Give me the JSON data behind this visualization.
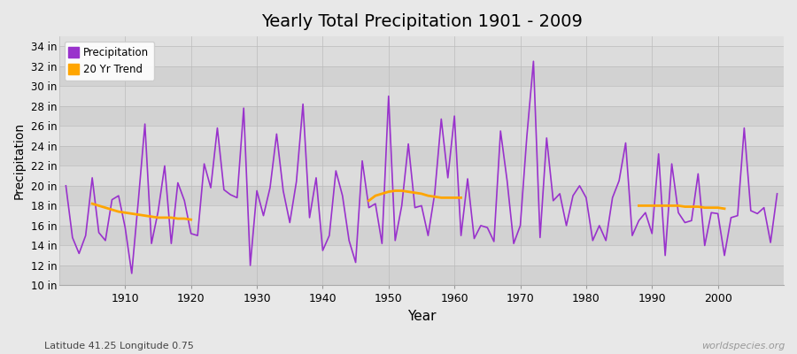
{
  "title": "Yearly Total Precipitation 1901 - 2009",
  "xlabel": "Year",
  "ylabel": "Precipitation",
  "subtitle": "Latitude 41.25 Longitude 0.75",
  "watermark": "worldspecies.org",
  "ylim": [
    10,
    35
  ],
  "yticks": [
    10,
    12,
    14,
    16,
    18,
    20,
    22,
    24,
    26,
    28,
    30,
    32,
    34
  ],
  "ytick_labels": [
    "10 in",
    "12 in",
    "14 in",
    "16 in",
    "18 in",
    "20 in",
    "22 in",
    "24 in",
    "26 in",
    "28 in",
    "30 in",
    "32 in",
    "34 in"
  ],
  "xlim": [
    1900,
    2010
  ],
  "precip_color": "#9932CC",
  "trend_color": "#FFA500",
  "bg_color": "#E8E8E8",
  "plot_bg_light": "#E0E0E0",
  "plot_bg_dark": "#D0D0D0",
  "years": [
    1901,
    1902,
    1903,
    1904,
    1905,
    1906,
    1907,
    1908,
    1909,
    1910,
    1911,
    1912,
    1913,
    1914,
    1915,
    1916,
    1917,
    1918,
    1919,
    1920,
    1921,
    1922,
    1923,
    1924,
    1925,
    1926,
    1927,
    1928,
    1929,
    1930,
    1931,
    1932,
    1933,
    1934,
    1935,
    1936,
    1937,
    1938,
    1939,
    1940,
    1941,
    1942,
    1943,
    1944,
    1945,
    1946,
    1947,
    1948,
    1949,
    1950,
    1951,
    1952,
    1953,
    1954,
    1955,
    1956,
    1957,
    1958,
    1959,
    1960,
    1961,
    1962,
    1963,
    1964,
    1965,
    1966,
    1967,
    1968,
    1969,
    1970,
    1971,
    1972,
    1973,
    1974,
    1975,
    1976,
    1977,
    1978,
    1979,
    1980,
    1981,
    1982,
    1983,
    1984,
    1985,
    1986,
    1987,
    1988,
    1989,
    1990,
    1991,
    1992,
    1993,
    1994,
    1995,
    1996,
    1997,
    1998,
    1999,
    2000,
    2001,
    2002,
    2003,
    2004,
    2005,
    2006,
    2007,
    2008,
    2009
  ],
  "precip": [
    20.0,
    14.8,
    13.2,
    15.0,
    20.8,
    15.3,
    14.5,
    18.6,
    19.0,
    15.8,
    11.2,
    18.5,
    26.2,
    14.2,
    17.4,
    22.0,
    14.2,
    20.3,
    18.5,
    15.2,
    15.0,
    22.2,
    19.8,
    25.8,
    19.6,
    19.1,
    18.8,
    27.8,
    12.0,
    19.5,
    17.0,
    19.8,
    25.2,
    19.5,
    16.3,
    20.4,
    28.2,
    16.8,
    20.8,
    13.5,
    15.0,
    21.5,
    19.0,
    14.5,
    12.3,
    22.5,
    17.8,
    18.2,
    14.2,
    29.0,
    14.5,
    18.0,
    24.2,
    17.8,
    18.0,
    15.0,
    19.2,
    26.7,
    20.8,
    27.0,
    15.0,
    20.7,
    14.7,
    16.0,
    15.8,
    14.4,
    25.5,
    20.5,
    14.2,
    16.0,
    25.0,
    32.5,
    14.8,
    24.8,
    18.5,
    19.2,
    16.0,
    19.0,
    20.0,
    18.8,
    14.5,
    16.0,
    14.5,
    18.8,
    20.5,
    24.3,
    15.0,
    16.5,
    17.3,
    15.2,
    23.2,
    13.0,
    22.2,
    17.3,
    16.3,
    16.5,
    21.2,
    14.0,
    17.3,
    17.2,
    13.0,
    16.8,
    17.0,
    25.8,
    17.5,
    17.2,
    17.8,
    14.3,
    19.2
  ],
  "trend_segment1_years": [
    1905,
    1906,
    1907,
    1908,
    1909,
    1910,
    1911,
    1912,
    1913,
    1914,
    1915,
    1916,
    1917,
    1918,
    1919,
    1920
  ],
  "trend_segment1_vals": [
    18.2,
    18.0,
    17.8,
    17.6,
    17.4,
    17.3,
    17.2,
    17.1,
    17.0,
    16.9,
    16.8,
    16.8,
    16.8,
    16.7,
    16.7,
    16.6
  ],
  "trend_segment2_years": [
    1947,
    1948,
    1949,
    1950,
    1951,
    1952,
    1953,
    1954,
    1955,
    1956,
    1957,
    1958,
    1959,
    1960,
    1961
  ],
  "trend_segment2_vals": [
    18.5,
    19.0,
    19.2,
    19.4,
    19.5,
    19.5,
    19.4,
    19.3,
    19.2,
    19.0,
    18.9,
    18.8,
    18.8,
    18.8,
    18.8
  ],
  "trend_segment3_years": [
    1988,
    1989,
    1990,
    1991,
    1992,
    1993,
    1994,
    1995,
    1996,
    1997,
    1998,
    1999,
    2000,
    2001
  ],
  "trend_segment3_vals": [
    18.0,
    18.0,
    18.0,
    18.0,
    18.0,
    18.0,
    18.0,
    17.9,
    17.9,
    17.9,
    17.8,
    17.8,
    17.8,
    17.7
  ]
}
